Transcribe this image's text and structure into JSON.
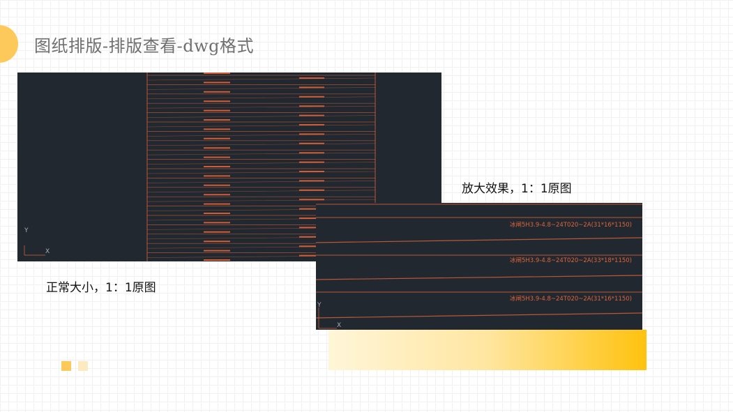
{
  "header": {
    "title": "图纸排版-排版查看-dwg格式"
  },
  "captions": {
    "normal": "正常大小，1：1原图",
    "zoomed": "放大效果，1：1原图"
  },
  "zoomed_view": {
    "labels": [
      "冰闸5H3.9-4.8~24T020~2A(31*16*1150)",
      "冰闸5H3.9-4.8~24T020~2A(33*18*1150)",
      "冰闸5H3.9-4.8~24T020~2A(31*16*1150)"
    ]
  },
  "axis": {
    "x": "X",
    "y": "Y"
  },
  "colors": {
    "accent": "#fdc95a",
    "cad_bg": "#212830",
    "cad_line": "#e0643a"
  }
}
